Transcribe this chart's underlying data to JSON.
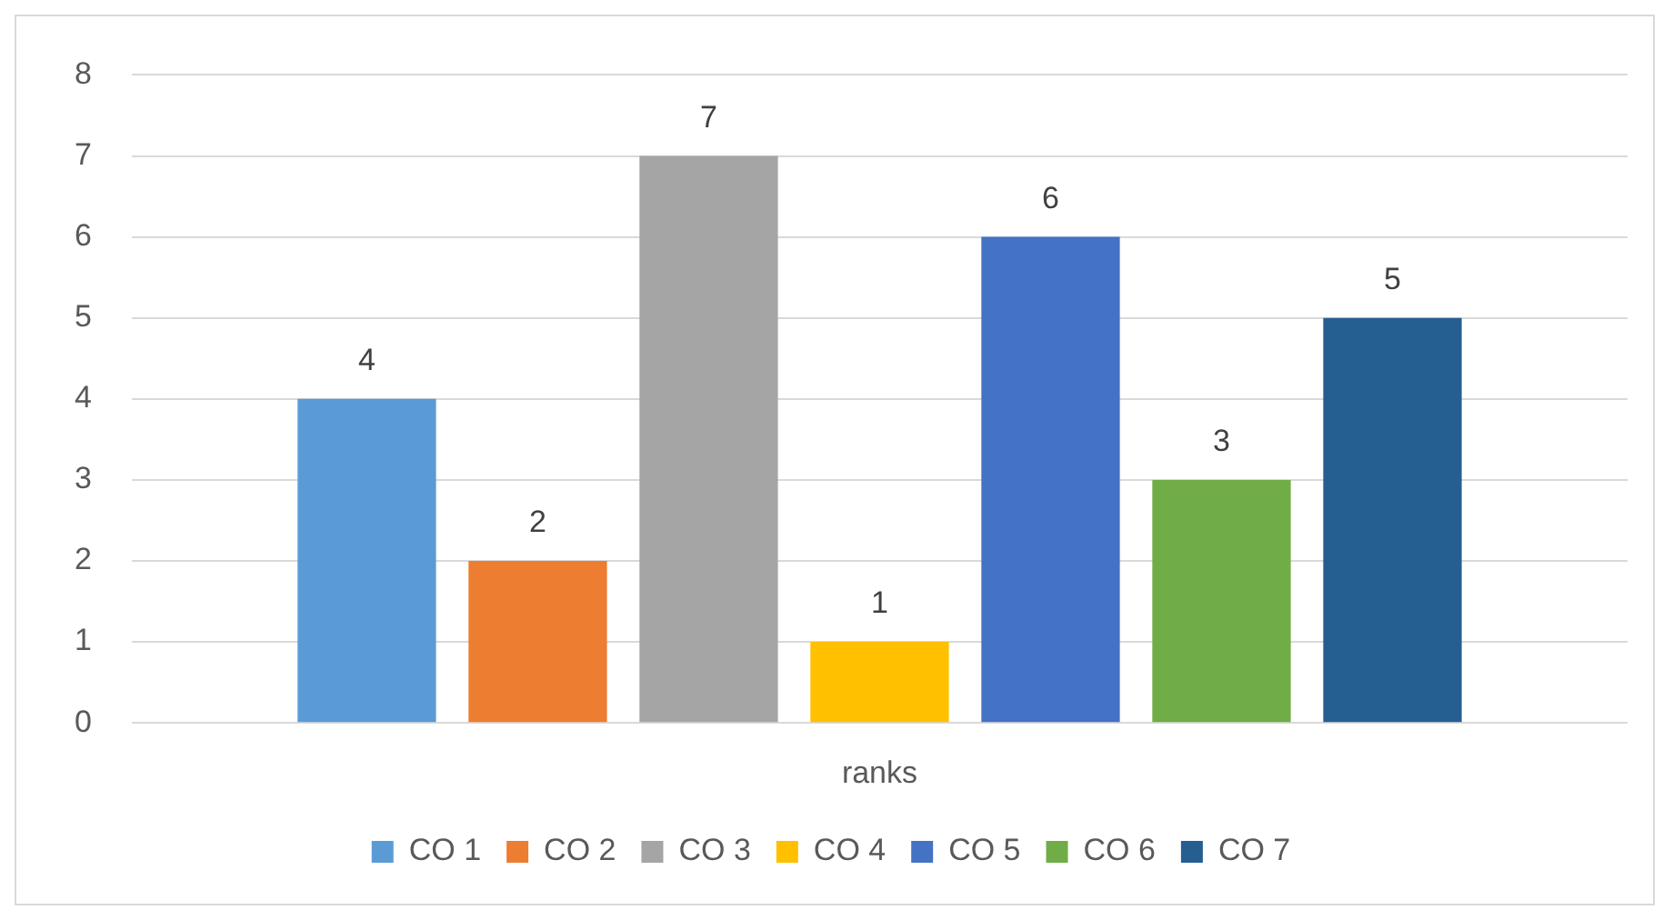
{
  "chart_data": {
    "type": "bar",
    "categories": [
      "ranks"
    ],
    "series": [
      {
        "name": "CO 1",
        "color": "#5b9bd5",
        "values": [
          4
        ]
      },
      {
        "name": "CO 2",
        "color": "#ed7d31",
        "values": [
          2
        ]
      },
      {
        "name": "CO 3",
        "color": "#a5a5a5",
        "values": [
          7
        ]
      },
      {
        "name": "CO 4",
        "color": "#ffc000",
        "values": [
          1
        ]
      },
      {
        "name": "CO 5",
        "color": "#4472c4",
        "values": [
          6
        ]
      },
      {
        "name": "CO 6",
        "color": "#70ad47",
        "values": [
          3
        ]
      },
      {
        "name": "CO 7",
        "color": "#255e91",
        "values": [
          5
        ]
      }
    ],
    "ylim": [
      0,
      8
    ],
    "yticks": [
      0,
      1,
      2,
      3,
      4,
      5,
      6,
      7,
      8
    ],
    "grid": "y",
    "legend": "bottom",
    "data_labels": true
  }
}
